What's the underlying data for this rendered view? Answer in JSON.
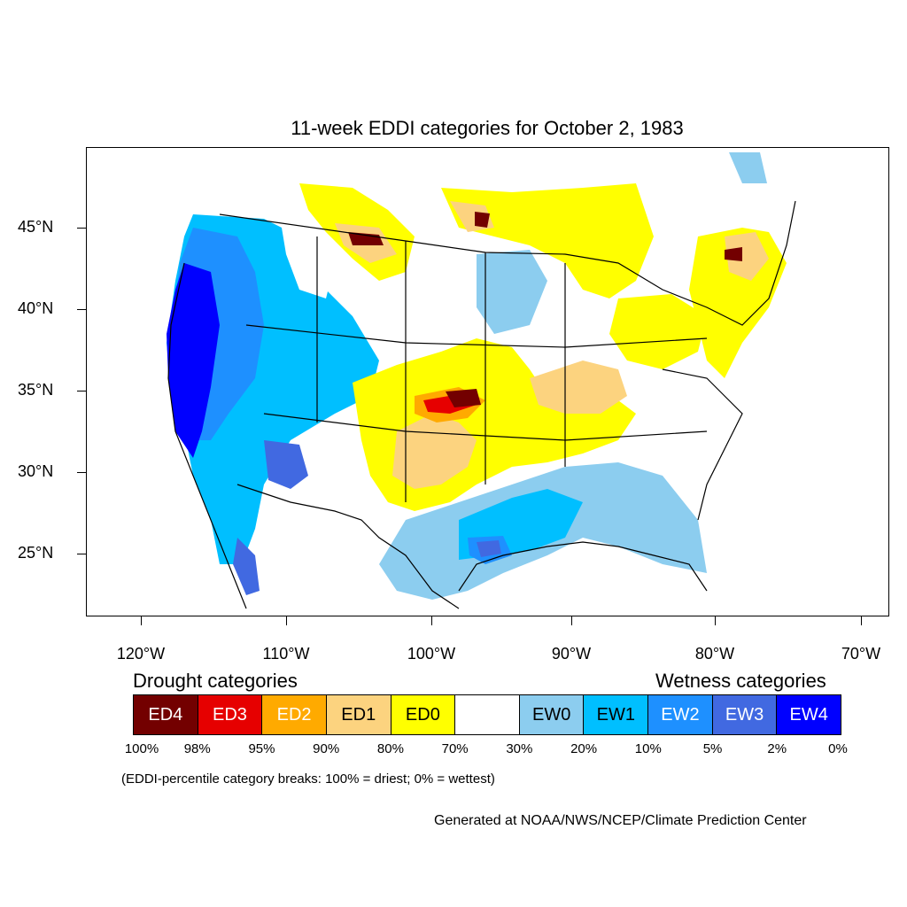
{
  "title": "11-week EDDI categories for October 2, 1983",
  "axes": {
    "lat_labels": [
      "45°N",
      "40°N",
      "35°N",
      "30°N",
      "25°N"
    ],
    "lon_labels": [
      "120°W",
      "110°W",
      "100°W",
      "90°W",
      "80°W",
      "70°W"
    ]
  },
  "legend": {
    "drought_heading": "Drought categories",
    "wetness_heading": "Wetness categories",
    "categories": [
      {
        "label": "ED4",
        "color": "#730000",
        "text_color": "#ffffff"
      },
      {
        "label": "ED3",
        "color": "#e60000",
        "text_color": "#ffffff"
      },
      {
        "label": "ED2",
        "color": "#ffaa00",
        "text_color": "#ffffff"
      },
      {
        "label": "ED1",
        "color": "#fcd37f",
        "text_color": "#000000"
      },
      {
        "label": "ED0",
        "color": "#ffff00",
        "text_color": "#000000"
      },
      {
        "label": "",
        "color": "#ffffff",
        "text_color": "#000000"
      },
      {
        "label": "EW0",
        "color": "#8ccdef",
        "text_color": "#000000"
      },
      {
        "label": "EW1",
        "color": "#00bfff",
        "text_color": "#000000"
      },
      {
        "label": "EW2",
        "color": "#1e90ff",
        "text_color": "#ffffff"
      },
      {
        "label": "EW3",
        "color": "#4169e1",
        "text_color": "#ffffff"
      },
      {
        "label": "EW4",
        "color": "#0000ff",
        "text_color": "#ffffff"
      }
    ],
    "percentiles": [
      "100%",
      "98%",
      "95%",
      "90%",
      "80%",
      "70%",
      "30%",
      "20%",
      "10%",
      "5%",
      "2%",
      "0%"
    ]
  },
  "note": "(EDDI-percentile category breaks: 100% = driest; 0% = wettest)",
  "credit": "Generated at NOAA/NWS/NCEP/Climate Prediction Center"
}
